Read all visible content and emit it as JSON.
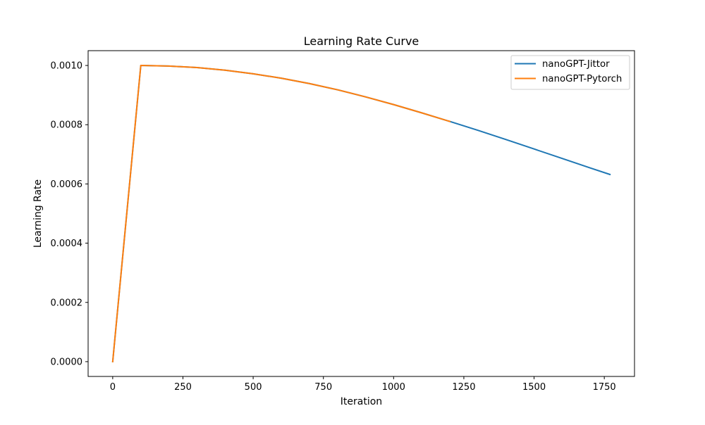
{
  "chart_data": {
    "type": "line",
    "title": "Learning Rate Curve",
    "xlabel": "Iteration",
    "ylabel": "Learning Rate",
    "xlim": [
      -87.5,
      1857.5
    ],
    "ylim": [
      -5e-05,
      0.00105
    ],
    "xticks": [
      0,
      250,
      500,
      750,
      1000,
      1250,
      1500,
      1750
    ],
    "xtick_labels": [
      "0",
      "250",
      "500",
      "750",
      "1000",
      "1250",
      "1500",
      "1750"
    ],
    "yticks": [
      0.0,
      0.0002,
      0.0004,
      0.0006,
      0.0008,
      0.001
    ],
    "ytick_labels": [
      "0.0000",
      "0.0002",
      "0.0004",
      "0.0006",
      "0.0008",
      "0.0010"
    ],
    "grid": false,
    "legend_position": "top-right",
    "series": [
      {
        "name": "nanoGPT-Jittor",
        "color": "#1f77b4",
        "x": [
          0,
          100,
          200,
          300,
          400,
          500,
          600,
          700,
          800,
          900,
          1000,
          1100,
          1200,
          1300,
          1400,
          1500,
          1600,
          1700,
          1770
        ],
        "y": [
          0.0,
          0.001,
          0.000998,
          0.000993,
          0.000984,
          0.000972,
          0.000957,
          0.000939,
          0.000918,
          0.000894,
          0.000868,
          0.00084,
          0.000811,
          0.000781,
          0.00075,
          0.000718,
          0.000686,
          0.000654,
          0.000632
        ]
      },
      {
        "name": "nanoGPT-Pytorch",
        "color": "#ff7f0e",
        "x": [
          0,
          100,
          200,
          300,
          400,
          500,
          600,
          700,
          800,
          900,
          1000,
          1100,
          1200
        ],
        "y": [
          0.0,
          0.001,
          0.000998,
          0.000993,
          0.000984,
          0.000972,
          0.000957,
          0.000939,
          0.000918,
          0.000894,
          0.000868,
          0.00084,
          0.000811
        ]
      }
    ]
  }
}
